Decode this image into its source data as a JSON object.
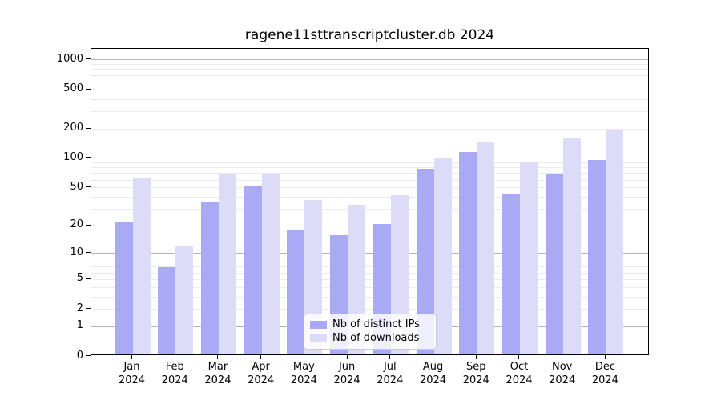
{
  "chart_data": {
    "type": "bar",
    "title": "ragene11sttranscriptcluster.db 2024",
    "categories": [
      "Jan",
      "Feb",
      "Mar",
      "Apr",
      "May",
      "Jun",
      "Jul",
      "Aug",
      "Sep",
      "Oct",
      "Nov",
      "Dec"
    ],
    "x_tick_second_line": "2024",
    "series": [
      {
        "name": "Nb of distinct IPs",
        "color": "#a9a9f5",
        "values": [
          22,
          7,
          35,
          53,
          18,
          16,
          21,
          78,
          117,
          43,
          70,
          96
        ]
      },
      {
        "name": "Nb of downloads",
        "color": "#dcdcf8",
        "values": [
          64,
          12,
          69,
          68,
          37,
          33,
          42,
          100,
          148,
          91,
          161,
          198
        ]
      }
    ],
    "y_axis": {
      "scale": "log1p",
      "ticks": [
        0,
        1,
        2,
        5,
        10,
        20,
        50,
        100,
        200,
        500,
        1000
      ],
      "ylim": [
        0,
        1300
      ]
    },
    "grid": {
      "on": true,
      "major": [
        1,
        10,
        100,
        1000
      ],
      "minor": [
        2,
        3,
        4,
        5,
        6,
        7,
        8,
        9,
        20,
        30,
        40,
        50,
        60,
        70,
        80,
        90,
        200,
        300,
        400,
        500,
        600,
        700,
        800,
        900
      ]
    },
    "legend": {
      "position": "bottom-center"
    },
    "colors": {
      "major_grid": "#b5b5b5",
      "minor_grid": "#ebebeb",
      "axis": "#000000",
      "background": "#ffffff"
    }
  }
}
